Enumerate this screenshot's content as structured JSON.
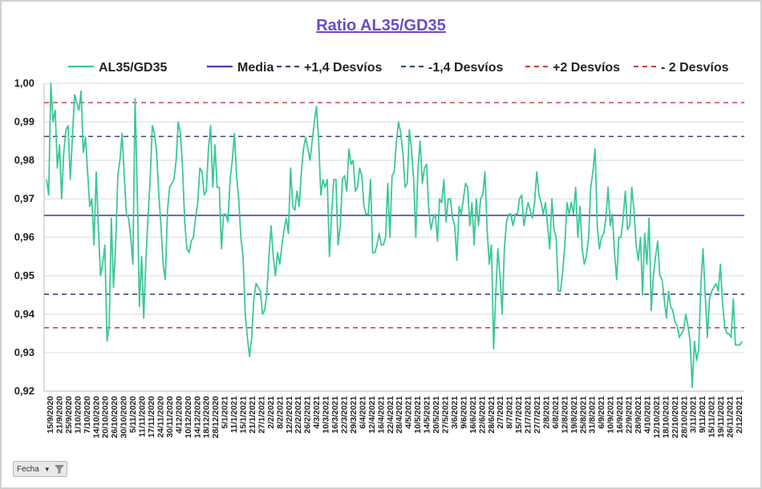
{
  "chart_data": {
    "type": "line",
    "title": "Ratio AL35/GD35",
    "xlabel": "",
    "ylabel": "",
    "ylim": [
      0.92,
      1.0
    ],
    "yticks": [
      "0,92",
      "0,93",
      "0,94",
      "0,95",
      "0,96",
      "0,97",
      "0,98",
      "0,99",
      "1,00"
    ],
    "grid": true,
    "legend_position": "top",
    "x_ticks": [
      "15/9/2020",
      "21/9/2020",
      "25/9/2020",
      "1/10/2020",
      "7/10/2020",
      "14/10/2020",
      "20/10/2020",
      "26/10/2020",
      "30/10/2020",
      "5/11/2020",
      "11/11/2020",
      "17/11/2020",
      "24/11/2020",
      "30/11/2020",
      "4/12/2020",
      "10/12/2020",
      "14/12/2020",
      "18/12/2020",
      "28/12/2020",
      "5/1/2021",
      "11/1/2021",
      "15/1/2021",
      "21/1/2021",
      "27/1/2021",
      "2/2/2021",
      "8/2/2021",
      "12/2/2021",
      "22/2/2021",
      "26/2/2021",
      "4/3/2021",
      "10/3/2021",
      "16/3/2021",
      "22/3/2021",
      "29/3/2021",
      "6/4/2021",
      "12/4/2021",
      "16/4/2021",
      "22/4/2021",
      "28/4/2021",
      "4/5/2021",
      "10/5/2021",
      "14/5/2021",
      "20/5/2021",
      "27/5/2021",
      "3/6/2021",
      "9/6/2021",
      "16/6/2021",
      "22/6/2021",
      "28/6/2021",
      "2/7/2021",
      "8/7/2021",
      "15/7/2021",
      "21/7/2021",
      "27/7/2021",
      "2/8/2021",
      "6/8/2021",
      "12/8/2021",
      "19/8/2021",
      "25/8/2021",
      "31/8/2021",
      "6/9/2021",
      "10/9/2021",
      "16/9/2021",
      "22/9/2021",
      "28/9/2021",
      "4/10/2021",
      "12/10/2021",
      "18/10/2021",
      "22/10/2021",
      "28/10/2021",
      "3/11/2021",
      "9/11/2021",
      "15/11/2021",
      "19/11/2021",
      "26/11/2021",
      "2/12/2021"
    ],
    "series": [
      {
        "name": "AL35/GD35",
        "color": "#3cc896",
        "style": "solid",
        "values": [
          0.975,
          0.971,
          1.0,
          0.99,
          0.993,
          0.978,
          0.984,
          0.97,
          0.982,
          0.988,
          0.989,
          0.975,
          0.986,
          0.997,
          0.995,
          0.993,
          0.998,
          0.982,
          0.986,
          0.977,
          0.968,
          0.97,
          0.958,
          0.977,
          0.963,
          0.95,
          0.953,
          0.958,
          0.933,
          0.937,
          0.965,
          0.947,
          0.958,
          0.976,
          0.98,
          0.987,
          0.976,
          0.966,
          0.965,
          0.96,
          0.953,
          0.996,
          0.972,
          0.942,
          0.955,
          0.939,
          0.954,
          0.965,
          0.975,
          0.989,
          0.987,
          0.982,
          0.971,
          0.963,
          0.953,
          0.949,
          0.967,
          0.973,
          0.974,
          0.975,
          0.98,
          0.99,
          0.987,
          0.978,
          0.964,
          0.957,
          0.956,
          0.959,
          0.96,
          0.965,
          0.969,
          0.978,
          0.977,
          0.971,
          0.972,
          0.983,
          0.989,
          0.973,
          0.984,
          0.973,
          0.973,
          0.957,
          0.966,
          0.966,
          0.964,
          0.975,
          0.98,
          0.987,
          0.976,
          0.97,
          0.96,
          0.955,
          0.94,
          0.934,
          0.929,
          0.934,
          0.944,
          0.948,
          0.947,
          0.946,
          0.94,
          0.941,
          0.945,
          0.955,
          0.963,
          0.955,
          0.95,
          0.956,
          0.953,
          0.958,
          0.962,
          0.965,
          0.961,
          0.978,
          0.968,
          0.967,
          0.972,
          0.968,
          0.977,
          0.983,
          0.986,
          0.983,
          0.98,
          0.985,
          0.99,
          0.994,
          0.985,
          0.971,
          0.975,
          0.973,
          0.975,
          0.955,
          0.966,
          0.975,
          0.975,
          0.958,
          0.963,
          0.975,
          0.976,
          0.972,
          0.983,
          0.979,
          0.98,
          0.972,
          0.973,
          0.978,
          0.976,
          0.968,
          0.966,
          0.966,
          0.975,
          0.956,
          0.956,
          0.958,
          0.961,
          0.958,
          0.958,
          0.96,
          0.974,
          0.96,
          0.976,
          0.977,
          0.985,
          0.99,
          0.987,
          0.982,
          0.973,
          0.974,
          0.988,
          0.983,
          0.975,
          0.96,
          0.978,
          0.985,
          0.974,
          0.978,
          0.979,
          0.967,
          0.962,
          0.965,
          0.966,
          0.959,
          0.97,
          0.969,
          0.975,
          0.964,
          0.97,
          0.97,
          0.965,
          0.963,
          0.954,
          0.968,
          0.966,
          0.97,
          0.974,
          0.973,
          0.963,
          0.969,
          0.958,
          0.97,
          0.963,
          0.97,
          0.971,
          0.977,
          0.962,
          0.953,
          0.958,
          0.931,
          0.945,
          0.957,
          0.95,
          0.94,
          0.957,
          0.964,
          0.966,
          0.966,
          0.963,
          0.966,
          0.966,
          0.97,
          0.971,
          0.963,
          0.966,
          0.969,
          0.967,
          0.965,
          0.969,
          0.977,
          0.971,
          0.969,
          0.966,
          0.969,
          0.963,
          0.957,
          0.97,
          0.962,
          0.96,
          0.946,
          0.946,
          0.951,
          0.958,
          0.969,
          0.966,
          0.969,
          0.966,
          0.973,
          0.96,
          0.968,
          0.957,
          0.953,
          0.955,
          0.96,
          0.973,
          0.977,
          0.983,
          0.963,
          0.957,
          0.96,
          0.961,
          0.965,
          0.973,
          0.963,
          0.966,
          0.956,
          0.949,
          0.96,
          0.96,
          0.965,
          0.972,
          0.962,
          0.963,
          0.973,
          0.967,
          0.958,
          0.954,
          0.96,
          0.945,
          0.961,
          0.953,
          0.965,
          0.941,
          0.95,
          0.955,
          0.959,
          0.95,
          0.949,
          0.944,
          0.939,
          0.946,
          0.942,
          0.941,
          0.938,
          0.937,
          0.934,
          0.935,
          0.936,
          0.94,
          0.937,
          0.933,
          0.921,
          0.933,
          0.928,
          0.931,
          0.948,
          0.957,
          0.945,
          0.934,
          0.944,
          0.946,
          0.947,
          0.948,
          0.946,
          0.953,
          0.943,
          0.937,
          0.935,
          0.935,
          0.934,
          0.944,
          0.932,
          0.932,
          0.932,
          0.933
        ]
      },
      {
        "name": "Media",
        "color": "#4a3cb4",
        "style": "solid",
        "value": 0.9657
      },
      {
        "name": "+1,4 Desvíos",
        "color": "#3a4a78",
        "style": "dashed",
        "value": 0.9862
      },
      {
        "name": "-1,4 Desvíos",
        "color": "#3a4a78",
        "style": "dashed",
        "value": 0.9452
      },
      {
        "name": "+2 Desvíos",
        "color": "#c84650",
        "style": "dashed",
        "value": 0.995
      },
      {
        "name": "- 2 Desvíos",
        "color": "#c84650",
        "style": "dashed",
        "value": 0.9365
      }
    ]
  },
  "filter": {
    "label": "Fecha"
  },
  "icons": {
    "dropdown": "dropdown-arrow-icon",
    "filter": "funnel-icon"
  }
}
